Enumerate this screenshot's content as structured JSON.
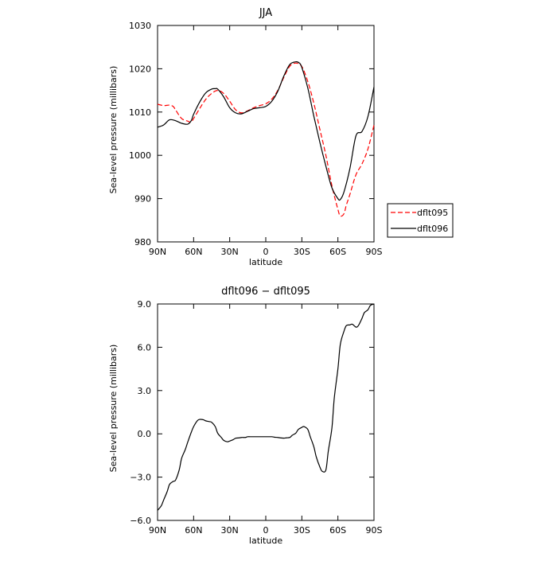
{
  "chart_data": [
    {
      "type": "line",
      "title": "JJA",
      "xlabel": "latitude",
      "ylabel": "Sea-level pressure (millibars)",
      "xlim": [
        90,
        -90
      ],
      "ylim": [
        980,
        1030
      ],
      "x_tick_values": [
        90,
        60,
        30,
        0,
        -30,
        -60,
        -90
      ],
      "x_tick_labels": [
        "90N",
        "60N",
        "30N",
        "0",
        "30S",
        "60S",
        "90S"
      ],
      "y_tick_values": [
        980,
        990,
        1000,
        1010,
        1020,
        1030
      ],
      "y_tick_labels": [
        "980",
        "990",
        "1000",
        "1010",
        "1020",
        "1030"
      ],
      "grid": false,
      "legend_position": "right",
      "series": [
        {
          "name": "dflt095",
          "color": "#ff0000",
          "dash": "dashed",
          "x": [
            90,
            85,
            80,
            77,
            75,
            70,
            65,
            62,
            60,
            55,
            50,
            45,
            40,
            35,
            30,
            25,
            20,
            15,
            10,
            5,
            0,
            -5,
            -10,
            -15,
            -20,
            -25,
            -30,
            -35,
            -40,
            -45,
            -50,
            -55,
            -60,
            -62,
            -65,
            -67,
            -70,
            -75,
            -80,
            -85,
            -90
          ],
          "y": [
            1011.8,
            1011.5,
            1011.6,
            1011.3,
            1010.5,
            1008.5,
            1007.9,
            1007.7,
            1008.5,
            1010.8,
            1012.9,
            1014.3,
            1015,
            1014.3,
            1012.5,
            1010.5,
            1009.8,
            1010.3,
            1011,
            1011.5,
            1011.9,
            1013,
            1015,
            1018,
            1020.6,
            1021.3,
            1020.5,
            1017,
            1012,
            1006,
            1000,
            993,
            987.5,
            986,
            986.5,
            988.5,
            991,
            995.5,
            998,
            1001.5,
            1007
          ]
        },
        {
          "name": "dflt096",
          "color": "#000000",
          "dash": "solid",
          "x": [
            90,
            85,
            80,
            75,
            70,
            65,
            62,
            60,
            55,
            50,
            45,
            42,
            40,
            35,
            30,
            25,
            20,
            15,
            10,
            5,
            0,
            -5,
            -10,
            -15,
            -20,
            -25,
            -28,
            -30,
            -35,
            -40,
            -45,
            -50,
            -55,
            -60,
            -62,
            -65,
            -70,
            -75,
            -80,
            -85,
            -90
          ],
          "y": [
            1006.5,
            1007,
            1008.2,
            1008,
            1007.4,
            1007.2,
            1008,
            1009.5,
            1012.3,
            1014.4,
            1015.3,
            1015.4,
            1015.3,
            1013.5,
            1011,
            1009.8,
            1009.6,
            1010.2,
            1010.8,
            1011,
            1011.3,
            1012.5,
            1014.8,
            1018.3,
            1021,
            1021.6,
            1021.3,
            1020.3,
            1015.5,
            1009,
            1003,
            997.5,
            992.5,
            990,
            989.8,
            991.5,
            997,
            1004.5,
            1005.5,
            1009,
            1015.8
          ]
        }
      ]
    },
    {
      "type": "line",
      "title": "dflt096 − dflt095",
      "xlabel": "latitude",
      "ylabel": "Sea-level pressure (millibars)",
      "xlim": [
        90,
        -90
      ],
      "ylim": [
        -6,
        9
      ],
      "x_tick_values": [
        90,
        60,
        30,
        0,
        -30,
        -60,
        -90
      ],
      "x_tick_labels": [
        "90N",
        "60N",
        "30N",
        "0",
        "30S",
        "60S",
        "90S"
      ],
      "y_tick_values": [
        -6,
        -3,
        0,
        3,
        6,
        9
      ],
      "y_tick_labels": [
        "−6.0",
        "−3.0",
        "0.0",
        "3.0",
        "6.0",
        "9.0"
      ],
      "grid": false,
      "series": [
        {
          "color": "#000000",
          "dash": "solid",
          "x": [
            90,
            87,
            85,
            82,
            80,
            77,
            75,
            72,
            70,
            67,
            65,
            62,
            60,
            57,
            55,
            52,
            50,
            47,
            45,
            42,
            40,
            37,
            35,
            32,
            30,
            27,
            25,
            22,
            20,
            17,
            15,
            12,
            10,
            7,
            5,
            2,
            0,
            -2,
            -5,
            -7,
            -10,
            -12,
            -15,
            -17,
            -20,
            -22,
            -25,
            -27,
            -30,
            -32,
            -35,
            -37,
            -40,
            -42,
            -45,
            -47,
            -50,
            -52,
            -55,
            -57,
            -60,
            -62,
            -65,
            -67,
            -70,
            -72,
            -75,
            -77,
            -80,
            -82,
            -85,
            -87,
            -90
          ],
          "y": [
            -5.3,
            -5,
            -4.6,
            -4,
            -3.5,
            -3.3,
            -3.2,
            -2.5,
            -1.7,
            -1.1,
            -0.6,
            0.1,
            0.5,
            0.9,
            1,
            0.98,
            0.9,
            0.85,
            0.8,
            0.5,
            0.05,
            -0.25,
            -0.45,
            -0.55,
            -0.5,
            -0.4,
            -0.3,
            -0.28,
            -0.25,
            -0.25,
            -0.2,
            -0.2,
            -0.2,
            -0.2,
            -0.2,
            -0.2,
            -0.2,
            -0.2,
            -0.2,
            -0.23,
            -0.25,
            -0.28,
            -0.3,
            -0.28,
            -0.25,
            -0.1,
            0.05,
            0.3,
            0.45,
            0.5,
            0.3,
            -0.2,
            -0.9,
            -1.6,
            -2.3,
            -2.6,
            -2.5,
            -1.2,
            0.4,
            2.5,
            4.5,
            6.2,
            7.1,
            7.5,
            7.55,
            7.6,
            7.4,
            7.5,
            8,
            8.4,
            8.6,
            8.9,
            9
          ]
        }
      ]
    }
  ]
}
